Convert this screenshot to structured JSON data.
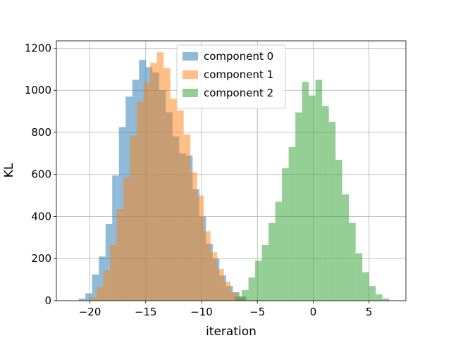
{
  "chart_data": {
    "type": "bar",
    "subtype": "histogram",
    "xlabel": "iteration",
    "ylabel": "KL",
    "xlim": [
      -23.0,
      8.3
    ],
    "ylim": [
      0,
      1235
    ],
    "xticks": [
      -20,
      -15,
      -10,
      -5,
      0,
      5
    ],
    "yticks": [
      0,
      200,
      400,
      600,
      800,
      1000,
      1200
    ],
    "grid": true,
    "legend_position": "top-center",
    "series": [
      {
        "name": "component 0",
        "color": "#1f77b4",
        "bins": [
          {
            "x0": -21.0,
            "x1": -20.4,
            "count": 10
          },
          {
            "x0": -20.4,
            "x1": -19.8,
            "count": 35
          },
          {
            "x0": -19.8,
            "x1": -19.2,
            "count": 125
          },
          {
            "x0": -19.2,
            "x1": -18.6,
            "count": 210
          },
          {
            "x0": -18.6,
            "x1": -18.0,
            "count": 365
          },
          {
            "x0": -18.0,
            "x1": -17.4,
            "count": 595
          },
          {
            "x0": -17.4,
            "x1": -16.8,
            "count": 825
          },
          {
            "x0": -16.8,
            "x1": -16.2,
            "count": 970
          },
          {
            "x0": -16.2,
            "x1": -15.6,
            "count": 1050
          },
          {
            "x0": -15.6,
            "x1": -15.0,
            "count": 1145
          },
          {
            "x0": -15.0,
            "x1": -14.4,
            "count": 1110
          },
          {
            "x0": -14.4,
            "x1": -13.8,
            "count": 1085
          },
          {
            "x0": -13.8,
            "x1": -13.2,
            "count": 1000
          },
          {
            "x0": -13.2,
            "x1": -12.6,
            "count": 895
          },
          {
            "x0": -12.6,
            "x1": -12.0,
            "count": 780
          },
          {
            "x0": -12.0,
            "x1": -11.4,
            "count": 700
          },
          {
            "x0": -11.4,
            "x1": -10.8,
            "count": 690
          },
          {
            "x0": -10.8,
            "x1": -10.2,
            "count": 530
          },
          {
            "x0": -10.2,
            "x1": -9.6,
            "count": 400
          },
          {
            "x0": -9.6,
            "x1": -9.0,
            "count": 270
          },
          {
            "x0": -9.0,
            "x1": -8.4,
            "count": 200
          },
          {
            "x0": -8.4,
            "x1": -7.8,
            "count": 120
          },
          {
            "x0": -7.8,
            "x1": -7.2,
            "count": 70
          },
          {
            "x0": -7.2,
            "x1": -6.6,
            "count": 40
          },
          {
            "x0": -6.6,
            "x1": -6.0,
            "count": 20
          }
        ]
      },
      {
        "name": "component 1",
        "color": "#ff7f0e",
        "bins": [
          {
            "x0": -20.0,
            "x1": -19.4,
            "count": 15
          },
          {
            "x0": -19.4,
            "x1": -18.8,
            "count": 65
          },
          {
            "x0": -18.8,
            "x1": -18.2,
            "count": 145
          },
          {
            "x0": -18.2,
            "x1": -17.6,
            "count": 265
          },
          {
            "x0": -17.6,
            "x1": -17.0,
            "count": 435
          },
          {
            "x0": -17.0,
            "x1": -16.4,
            "count": 585
          },
          {
            "x0": -16.4,
            "x1": -15.8,
            "count": 785
          },
          {
            "x0": -15.8,
            "x1": -15.2,
            "count": 945
          },
          {
            "x0": -15.2,
            "x1": -14.6,
            "count": 1035
          },
          {
            "x0": -14.6,
            "x1": -14.0,
            "count": 1130
          },
          {
            "x0": -14.0,
            "x1": -13.4,
            "count": 1180
          },
          {
            "x0": -13.4,
            "x1": -12.8,
            "count": 1105
          },
          {
            "x0": -12.8,
            "x1": -12.2,
            "count": 960
          },
          {
            "x0": -12.2,
            "x1": -11.6,
            "count": 905
          },
          {
            "x0": -11.6,
            "x1": -11.0,
            "count": 790
          },
          {
            "x0": -11.0,
            "x1": -10.4,
            "count": 610
          },
          {
            "x0": -10.4,
            "x1": -9.8,
            "count": 500
          },
          {
            "x0": -9.8,
            "x1": -9.2,
            "count": 330
          },
          {
            "x0": -9.2,
            "x1": -8.6,
            "count": 230
          },
          {
            "x0": -8.6,
            "x1": -8.0,
            "count": 150
          },
          {
            "x0": -8.0,
            "x1": -7.4,
            "count": 90
          },
          {
            "x0": -7.4,
            "x1": -6.8,
            "count": 40
          },
          {
            "x0": -6.8,
            "x1": -6.2,
            "count": 15
          }
        ]
      },
      {
        "name": "component 2",
        "color": "#2ca02c",
        "bins": [
          {
            "x0": -7.0,
            "x1": -6.4,
            "count": 20
          },
          {
            "x0": -6.4,
            "x1": -5.8,
            "count": 50
          },
          {
            "x0": -5.8,
            "x1": -5.2,
            "count": 110
          },
          {
            "x0": -5.2,
            "x1": -4.6,
            "count": 190
          },
          {
            "x0": -4.6,
            "x1": -4.0,
            "count": 265
          },
          {
            "x0": -4.0,
            "x1": -3.4,
            "count": 370
          },
          {
            "x0": -3.4,
            "x1": -2.8,
            "count": 470
          },
          {
            "x0": -2.8,
            "x1": -2.2,
            "count": 630
          },
          {
            "x0": -2.2,
            "x1": -1.6,
            "count": 730
          },
          {
            "x0": -1.6,
            "x1": -1.0,
            "count": 895
          },
          {
            "x0": -1.0,
            "x1": -0.4,
            "count": 1040
          },
          {
            "x0": -0.4,
            "x1": 0.2,
            "count": 975
          },
          {
            "x0": 0.2,
            "x1": 0.8,
            "count": 1050
          },
          {
            "x0": 0.8,
            "x1": 1.4,
            "count": 925
          },
          {
            "x0": 1.4,
            "x1": 2.0,
            "count": 850
          },
          {
            "x0": 2.0,
            "x1": 2.6,
            "count": 670
          },
          {
            "x0": 2.6,
            "x1": 3.2,
            "count": 505
          },
          {
            "x0": 3.2,
            "x1": 3.8,
            "count": 370
          },
          {
            "x0": 3.8,
            "x1": 4.4,
            "count": 225
          },
          {
            "x0": 4.4,
            "x1": 5.0,
            "count": 135
          },
          {
            "x0": 5.0,
            "x1": 5.6,
            "count": 70
          },
          {
            "x0": 5.6,
            "x1": 6.2,
            "count": 30
          },
          {
            "x0": 6.2,
            "x1": 6.8,
            "count": 10
          }
        ]
      }
    ]
  }
}
